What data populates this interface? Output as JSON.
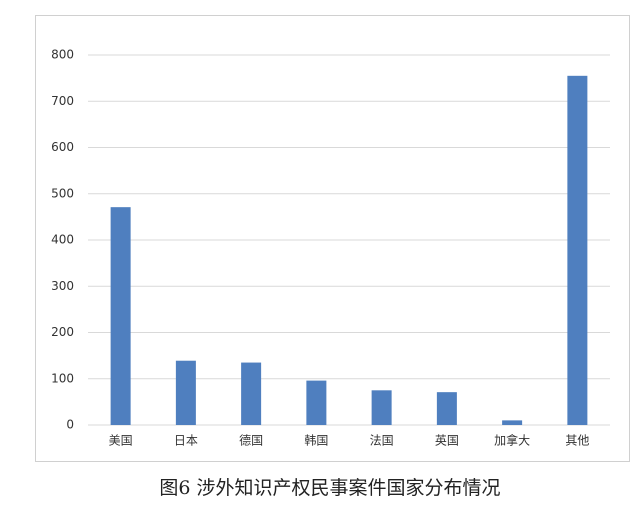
{
  "chart_data": {
    "type": "bar",
    "title": "图6 涉外知识产权民事案件国家分布情况",
    "categories": [
      "美国",
      "日本",
      "德国",
      "韩国",
      "法国",
      "英国",
      "加拿大",
      "其他"
    ],
    "values": [
      471,
      139,
      135,
      96,
      75,
      71,
      10,
      755
    ],
    "color": "#4f7fbf",
    "ylim": [
      0,
      800
    ],
    "yticks": [
      0,
      100,
      200,
      300,
      400,
      500,
      600,
      700,
      800
    ],
    "grid": true
  }
}
